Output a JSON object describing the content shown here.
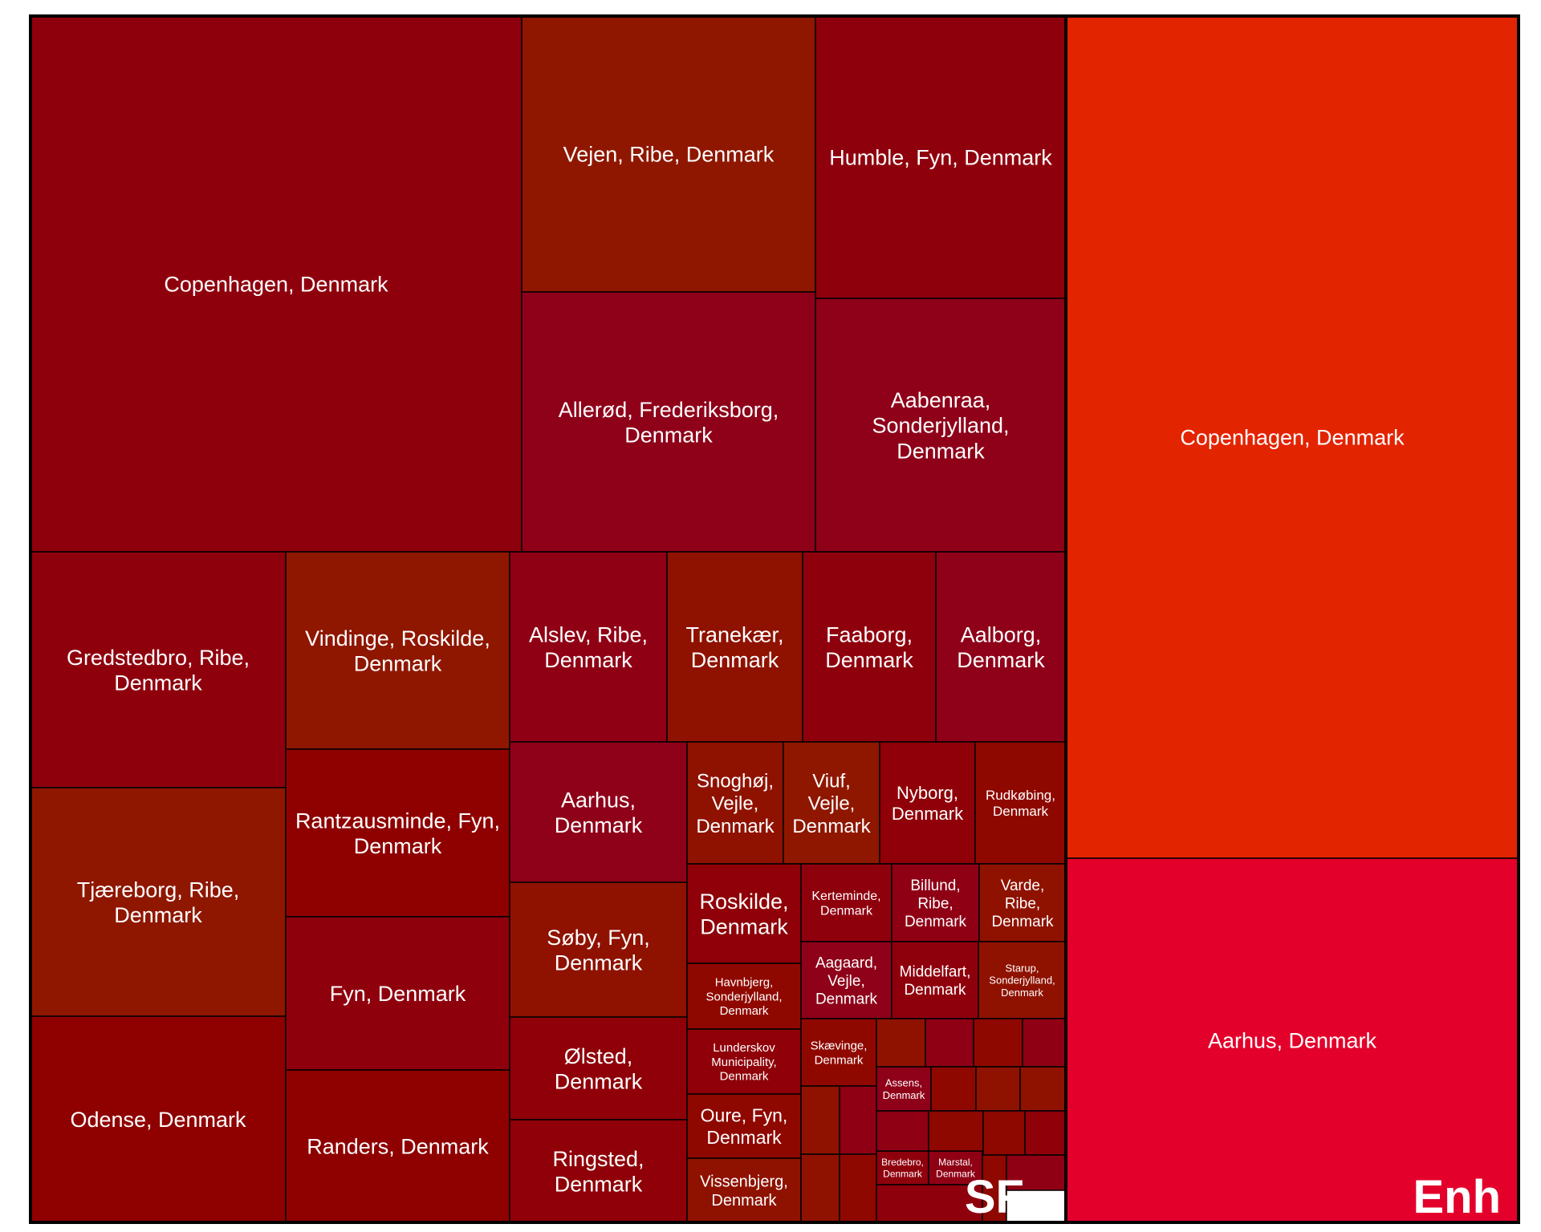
{
  "chart_data": {
    "type": "treemap",
    "groups": [
      {
        "name": "SF",
        "cells": [
          {
            "label": "Copenhagen, Denmark",
            "color": "#8f000d"
          },
          {
            "label": "Vejen, Ribe, Denmark",
            "color": "#8f1700"
          },
          {
            "label": "Humble, Fyn, Denmark",
            "color": "#8f000d"
          },
          {
            "label": "Allerød, Frederiksborg, Denmark",
            "color": "#8f0019"
          },
          {
            "label": "Aabenraa, Sonderjylland, Denmark",
            "color": "#8f0019"
          },
          {
            "label": "Gredstedbro, Ribe, Denmark",
            "color": "#8f000d"
          },
          {
            "label": "Tjæreborg, Ribe, Denmark",
            "color": "#8f1700"
          },
          {
            "label": "Odense, Denmark",
            "color": "#8f0000"
          },
          {
            "label": "Vindinge, Roskilde, Denmark",
            "color": "#8f1700"
          },
          {
            "label": "Rantzausminde, Fyn, Denmark",
            "color": "#8f0000"
          },
          {
            "label": "Fyn, Denmark",
            "color": "#8f000d"
          },
          {
            "label": "Randers, Denmark",
            "color": "#8f0000"
          },
          {
            "label": "Alslev, Ribe, Denmark",
            "color": "#8f0015"
          },
          {
            "label": "Tranekær, Denmark",
            "color": "#8f1200"
          },
          {
            "label": "Faaborg, Denmark",
            "color": "#8f000d"
          },
          {
            "label": "Aalborg, Denmark",
            "color": "#8f0019"
          },
          {
            "label": "Aarhus, Denmark",
            "color": "#8f0019"
          },
          {
            "label": "Søby, Fyn, Denmark",
            "color": "#8f1200"
          },
          {
            "label": "Ølsted, Denmark",
            "color": "#8f0008"
          },
          {
            "label": "Ringsted, Denmark",
            "color": "#8f0008"
          },
          {
            "label": "Snoghøj, Vejle, Denmark",
            "color": "#8f1200"
          },
          {
            "label": "Viuf, Vejle, Denmark",
            "color": "#8f1700"
          },
          {
            "label": "Nyborg, Denmark",
            "color": "#8f0008"
          },
          {
            "label": "Rudkøbing, Denmark",
            "color": "#8f0800"
          },
          {
            "label": "Roskilde, Denmark",
            "color": "#8f0008"
          },
          {
            "label": "Havnbjerg, Sonderjylland, Denmark",
            "color": "#8f0800"
          },
          {
            "label": "Lunderskov Municipality, Denmark",
            "color": "#8f0008"
          },
          {
            "label": "Oure, Fyn, Denmark",
            "color": "#8f0800"
          },
          {
            "label": "Vissenbjerg, Denmark",
            "color": "#8f1200"
          },
          {
            "label": "Kerteminde, Denmark",
            "color": "#8f000d"
          },
          {
            "label": "Billund, Ribe, Denmark",
            "color": "#8f0015"
          },
          {
            "label": "Varde, Ribe, Denmark",
            "color": "#8f1200"
          },
          {
            "label": "Aagaard, Vejle, Denmark",
            "color": "#8f0019"
          },
          {
            "label": "Middelfart, Denmark",
            "color": "#8f000d"
          },
          {
            "label": "Starup, Sonderjylland, Denmark",
            "color": "#8f1200"
          },
          {
            "label": "Skævinge, Denmark",
            "color": "#8f0800"
          },
          {
            "label": "Assens, Denmark",
            "color": "#8f0019"
          },
          {
            "label": "Bredebro, Denmark",
            "color": "#8f000d"
          },
          {
            "label": "Marstal, Denmark",
            "color": "#8f0015"
          },
          {
            "label": "",
            "color": "#8f1200"
          },
          {
            "label": "",
            "color": "#8f0015"
          },
          {
            "label": "",
            "color": "#8f0800"
          },
          {
            "label": "",
            "color": "#8f0015"
          },
          {
            "label": "",
            "color": "#8f0800"
          },
          {
            "label": "",
            "color": "#8f1200"
          },
          {
            "label": "",
            "color": "#8f1200"
          },
          {
            "label": "",
            "color": "#8f0015"
          },
          {
            "label": "",
            "color": "#8f0800"
          },
          {
            "label": "",
            "color": "#8f0800"
          },
          {
            "label": "",
            "color": "#8f0008"
          },
          {
            "label": "",
            "color": "#8f1200"
          },
          {
            "label": "",
            "color": "#8f0015"
          },
          {
            "label": "",
            "color": "#8f1200"
          },
          {
            "label": "",
            "color": "#8f0800"
          },
          {
            "label": "",
            "color": "#8f000d"
          },
          {
            "label": "",
            "color": "#8f0800"
          },
          {
            "label": "",
            "color": "#8f0015"
          }
        ]
      },
      {
        "name": "Enh",
        "cells": [
          {
            "label": "Copenhagen, Denmark",
            "color": "#e32400"
          },
          {
            "label": "Aarhus, Denmark",
            "color": "#e3002b"
          }
        ]
      }
    ]
  }
}
